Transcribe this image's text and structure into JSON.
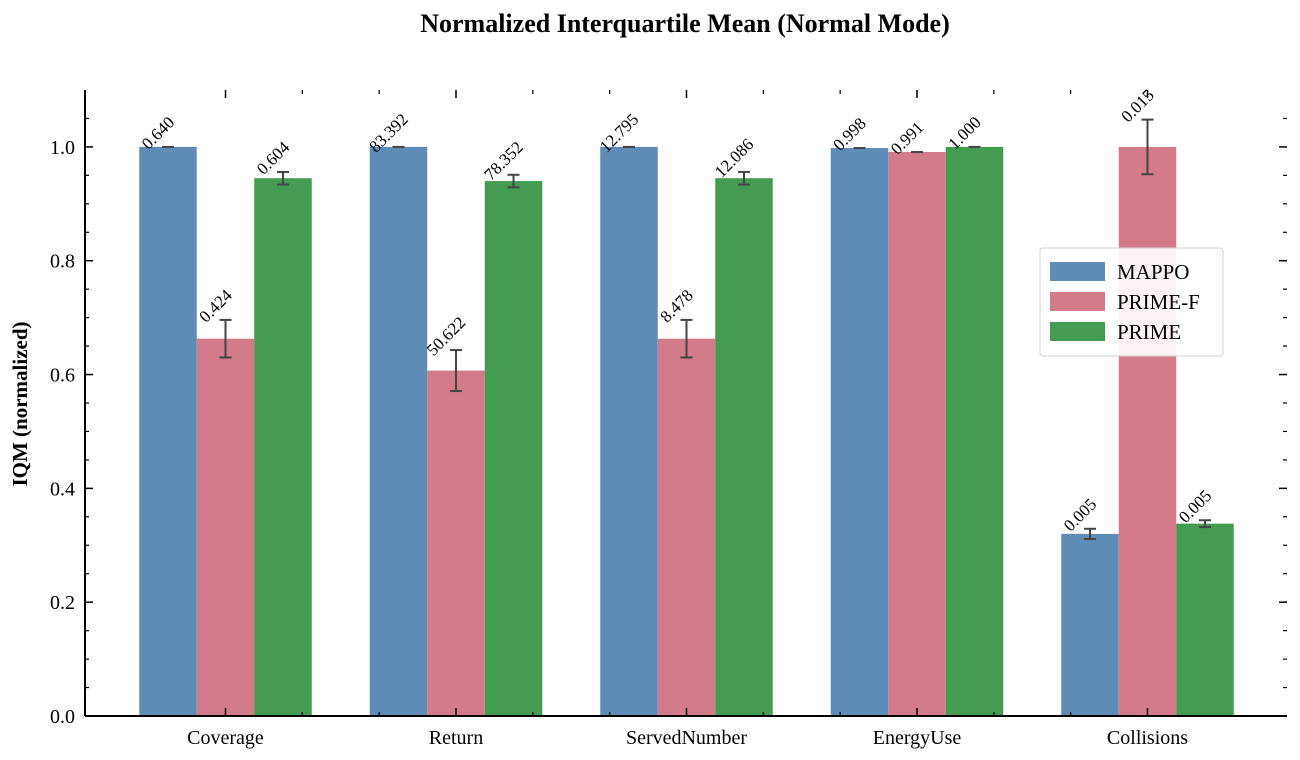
{
  "chart_data": {
    "type": "bar",
    "title": "Normalized Interquartile Mean (Normal Mode)",
    "xlabel": "",
    "ylabel": "IQM (normalized)",
    "ylim": [
      0,
      1.1
    ],
    "yticks": [
      "0.0",
      "0.2",
      "0.4",
      "0.6",
      "0.8",
      "1.0"
    ],
    "yticks_values": [
      0.0,
      0.2,
      0.4,
      0.6,
      0.8,
      1.0
    ],
    "categories": [
      "Coverage",
      "Return",
      "ServedNumber",
      "EnergyUse",
      "Collisions"
    ],
    "legend_position": "center-right",
    "grid": false,
    "series": [
      {
        "name": "MAPPO",
        "color": "#5f8bb7",
        "values": [
          1.0,
          1.0,
          1.0,
          0.998,
          0.32
        ],
        "errors": [
          0.0,
          0.0,
          0.0,
          0.0,
          0.009
        ],
        "labels": [
          "0.640",
          "83.392",
          "12.795",
          "0.998",
          "0.005"
        ]
      },
      {
        "name": "PRIME-F",
        "color": "#d47b8a",
        "values": [
          0.663,
          0.607,
          0.663,
          0.991,
          1.0
        ],
        "errors": [
          0.033,
          0.036,
          0.033,
          0.0,
          0.048
        ],
        "labels": [
          "0.424",
          "50.622",
          "8.478",
          "0.991",
          "0.015"
        ]
      },
      {
        "name": "PRIME",
        "color": "#439c51",
        "values": [
          0.945,
          0.94,
          0.945,
          1.0,
          0.338
        ],
        "errors": [
          0.011,
          0.011,
          0.011,
          0.0,
          0.006
        ],
        "labels": [
          "0.604",
          "78.352",
          "12.086",
          "1.000",
          "0.005"
        ]
      }
    ]
  }
}
